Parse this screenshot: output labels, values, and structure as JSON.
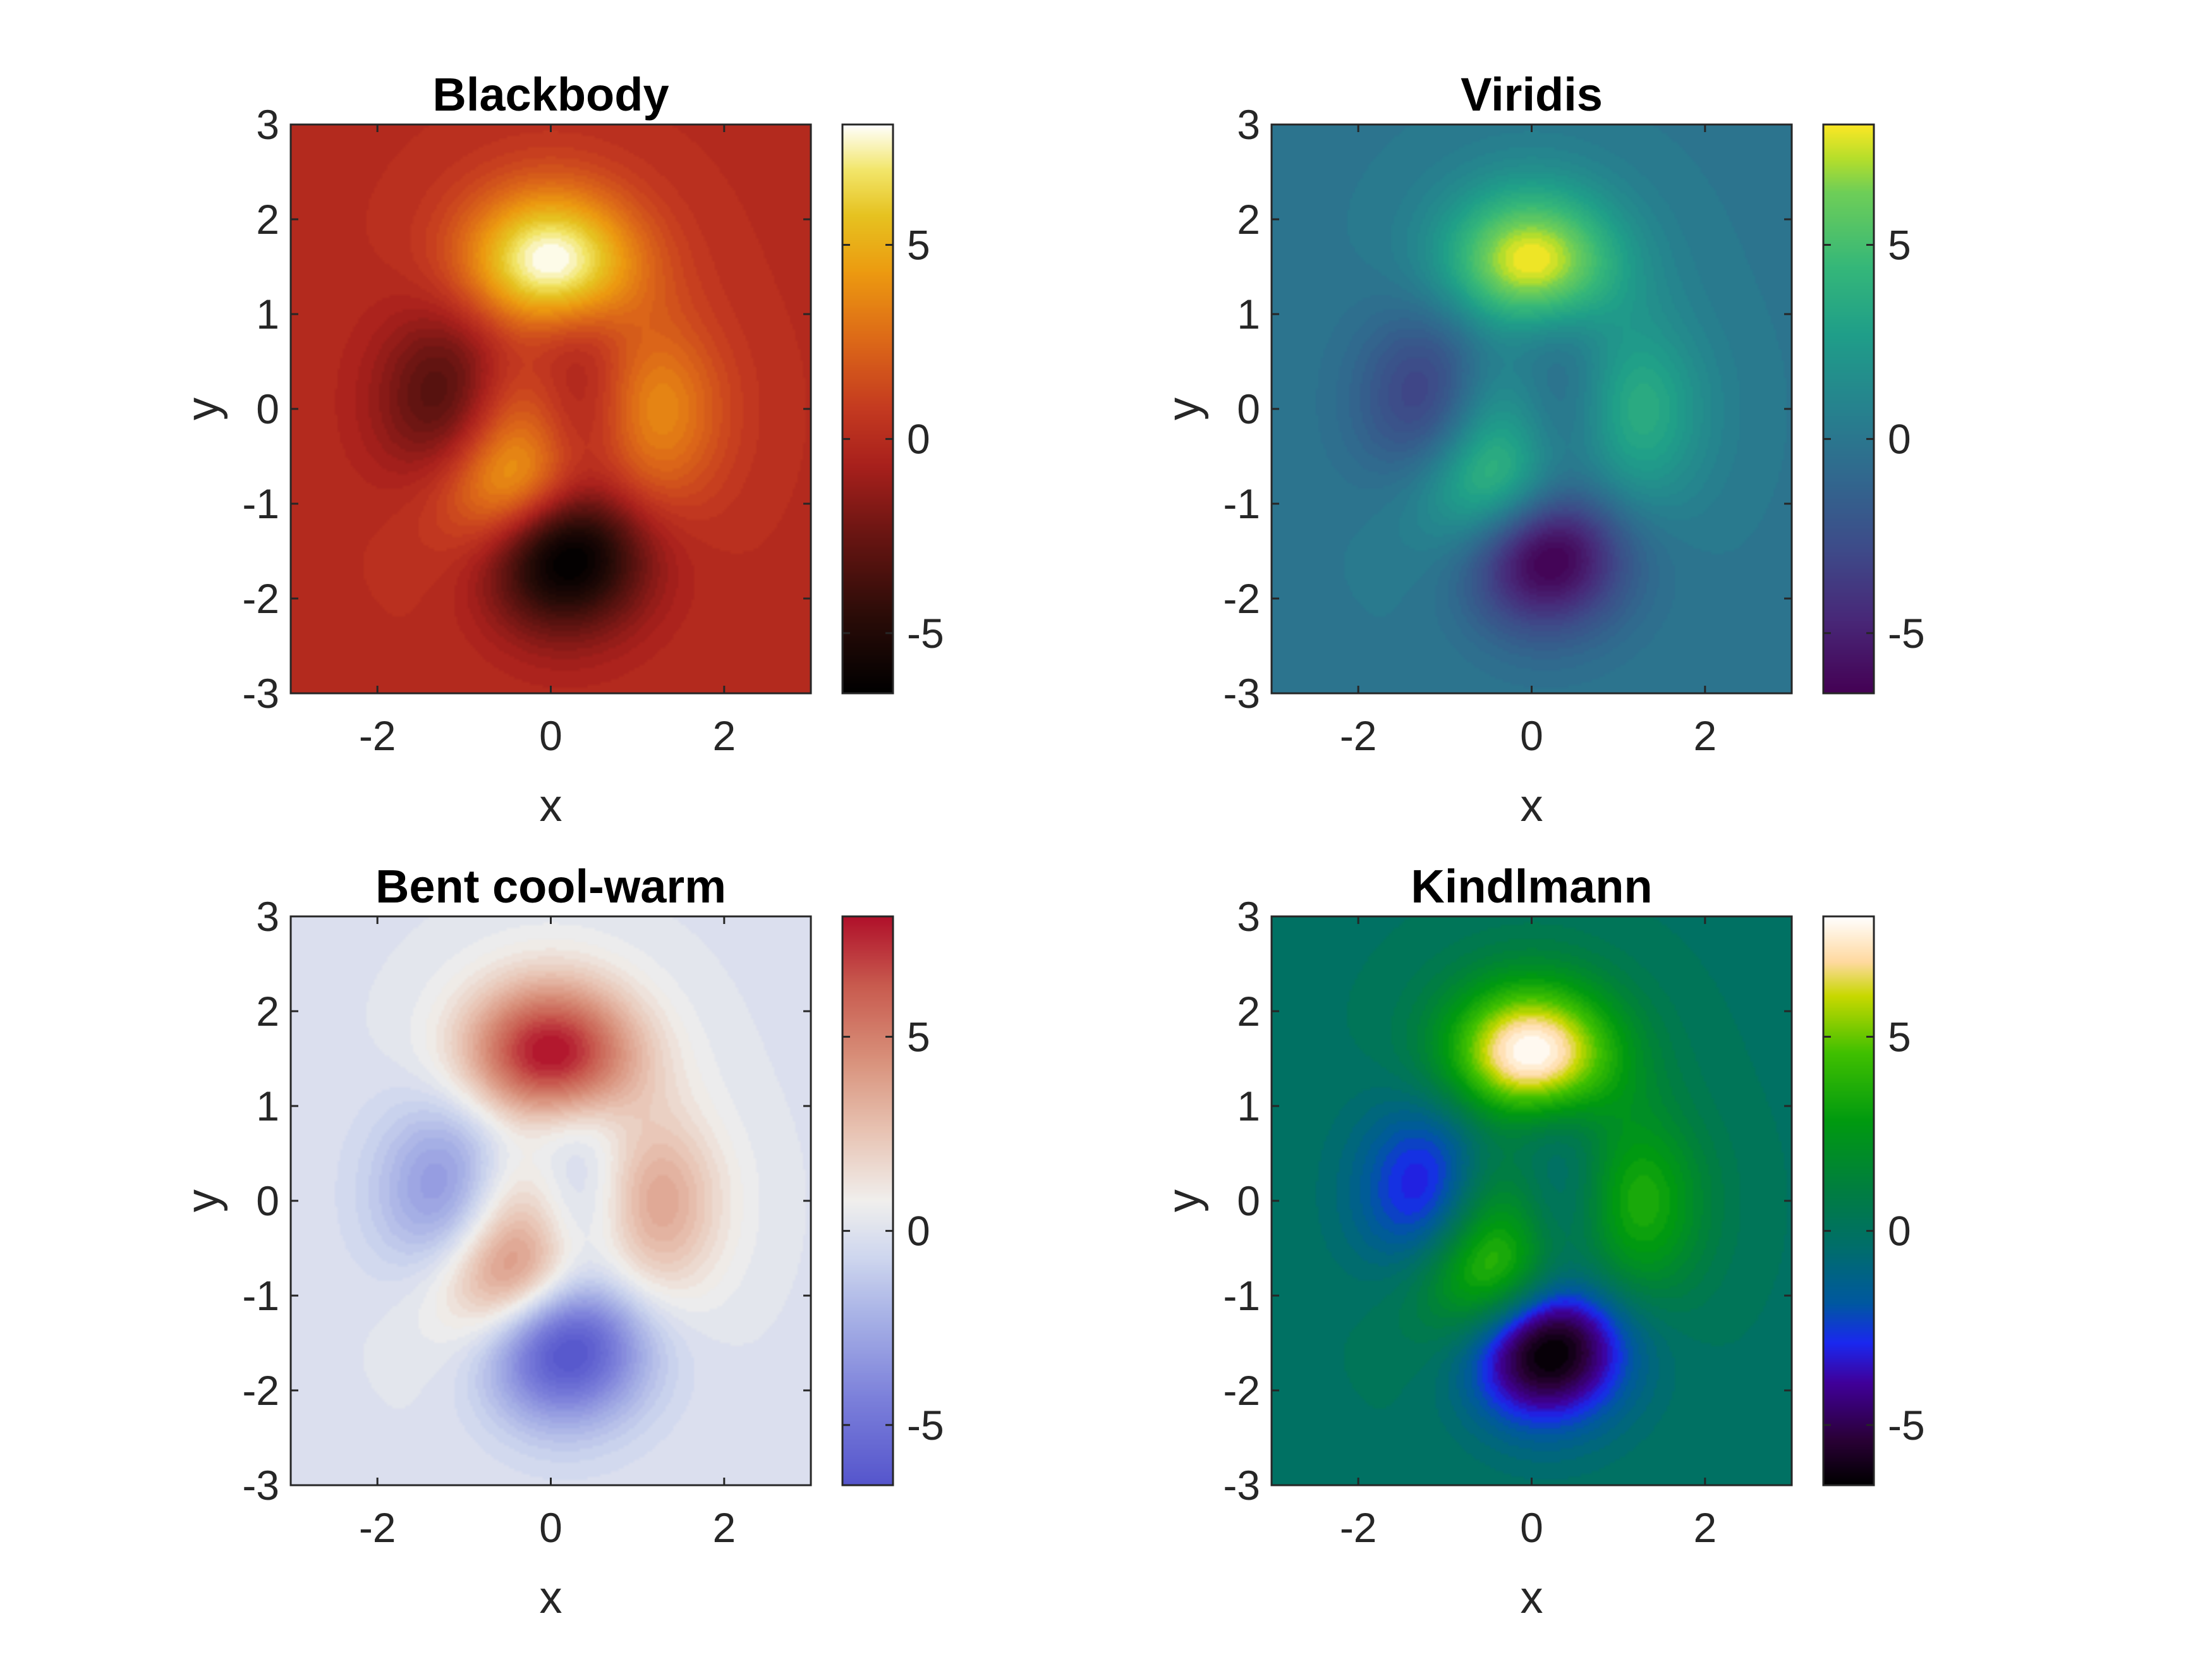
{
  "chart_data": [
    {
      "type": "heatmap",
      "title": "Blackbody",
      "xlabel": "x",
      "ylabel": "y",
      "xlim": [
        -3,
        3
      ],
      "ylim": [
        -3,
        3
      ],
      "x_ticks": [
        -2,
        0,
        2
      ],
      "y_ticks": [
        -3,
        -2,
        -1,
        0,
        1,
        2,
        3
      ],
      "colorbar": {
        "ticks": [
          -5,
          0,
          5
        ],
        "range": [
          -6.55,
          8.1
        ]
      },
      "colormap": [
        [
          0.0,
          "#000000"
        ],
        [
          0.14,
          "#2c0c08"
        ],
        [
          0.28,
          "#6a1512"
        ],
        [
          0.4,
          "#a8201c"
        ],
        [
          0.5,
          "#c43a20"
        ],
        [
          0.62,
          "#dc6818"
        ],
        [
          0.74,
          "#ec9a10"
        ],
        [
          0.84,
          "#e6c220"
        ],
        [
          0.92,
          "#f2e66a"
        ],
        [
          1.0,
          "#ffffff"
        ]
      ]
    },
    {
      "type": "heatmap",
      "title": "Viridis",
      "xlabel": "x",
      "ylabel": "y",
      "xlim": [
        -3,
        3
      ],
      "ylim": [
        -3,
        3
      ],
      "x_ticks": [
        -2,
        0,
        2
      ],
      "y_ticks": [
        -3,
        -2,
        -1,
        0,
        1,
        2,
        3
      ],
      "colorbar": {
        "ticks": [
          -5,
          0,
          5
        ],
        "range": [
          -6.55,
          8.1
        ]
      },
      "colormap": [
        [
          0.0,
          "#440154"
        ],
        [
          0.13,
          "#482878"
        ],
        [
          0.25,
          "#3e4a89"
        ],
        [
          0.38,
          "#31688e"
        ],
        [
          0.5,
          "#26828e"
        ],
        [
          0.63,
          "#1f9e89"
        ],
        [
          0.75,
          "#35b779"
        ],
        [
          0.88,
          "#6ece58"
        ],
        [
          0.94,
          "#b5de2b"
        ],
        [
          1.0,
          "#fde725"
        ]
      ]
    },
    {
      "type": "heatmap",
      "title": "Bent cool-warm",
      "xlabel": "x",
      "ylabel": "y",
      "xlim": [
        -3,
        3
      ],
      "ylim": [
        -3,
        3
      ],
      "x_ticks": [
        -2,
        0,
        2
      ],
      "y_ticks": [
        -3,
        -2,
        -1,
        0,
        1,
        2,
        3
      ],
      "colorbar": {
        "ticks": [
          -5,
          0,
          5
        ],
        "range": [
          -6.55,
          8.1
        ]
      },
      "colormap": [
        [
          0.0,
          "#5555cc"
        ],
        [
          0.15,
          "#7b7fda"
        ],
        [
          0.3,
          "#a9b3e6"
        ],
        [
          0.4,
          "#ced6ee"
        ],
        [
          0.5,
          "#f0efed"
        ],
        [
          0.62,
          "#e8c4b4"
        ],
        [
          0.75,
          "#d8907a"
        ],
        [
          0.88,
          "#c85a4e"
        ],
        [
          1.0,
          "#b0102a"
        ]
      ]
    },
    {
      "type": "heatmap",
      "title": "Kindlmann",
      "xlabel": "x",
      "ylabel": "y",
      "xlim": [
        -3,
        3
      ],
      "ylim": [
        -3,
        3
      ],
      "x_ticks": [
        -2,
        0,
        2
      ],
      "y_ticks": [
        -3,
        -2,
        -1,
        0,
        1,
        2,
        3
      ],
      "colorbar": {
        "ticks": [
          -5,
          0,
          5
        ],
        "range": [
          -6.55,
          8.1
        ]
      },
      "colormap": [
        [
          0.0,
          "#000000"
        ],
        [
          0.08,
          "#2a0036"
        ],
        [
          0.18,
          "#40009a"
        ],
        [
          0.25,
          "#1a28f0"
        ],
        [
          0.32,
          "#0058a0"
        ],
        [
          0.42,
          "#006e6a"
        ],
        [
          0.52,
          "#007e40"
        ],
        [
          0.64,
          "#009a10"
        ],
        [
          0.76,
          "#40c000"
        ],
        [
          0.86,
          "#c8d800"
        ],
        [
          0.92,
          "#ffd9a0"
        ],
        [
          1.0,
          "#ffffff"
        ]
      ]
    }
  ]
}
